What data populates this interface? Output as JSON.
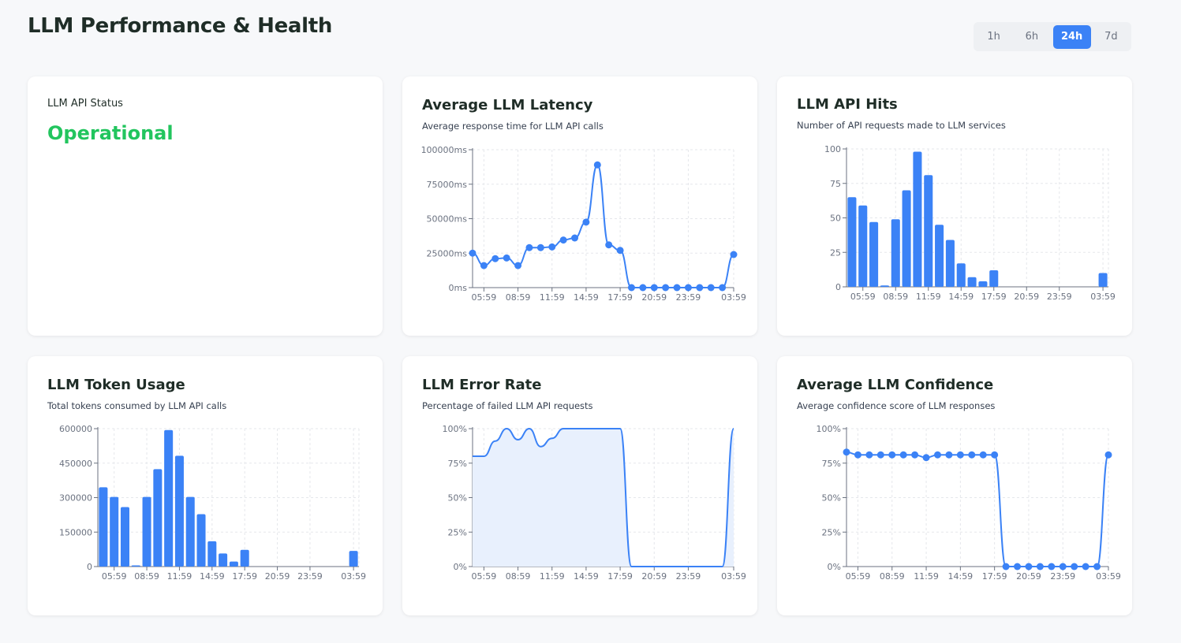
{
  "header": {
    "title": "LLM Performance & Health",
    "ranges": [
      "1h",
      "6h",
      "24h",
      "7d"
    ],
    "active_range": "24h"
  },
  "colors": {
    "accent": "#3b82f6",
    "success": "#22c55e",
    "fill": "#e8f0fd"
  },
  "status_card": {
    "label": "LLM API Status",
    "value": "Operational"
  },
  "cards": {
    "latency": {
      "title": "Average LLM Latency",
      "subtitle": "Average response time for LLM API calls"
    },
    "hits": {
      "title": "LLM API Hits",
      "subtitle": "Number of API requests made to LLM services"
    },
    "tokens": {
      "title": "LLM Token Usage",
      "subtitle": "Total tokens consumed by LLM API calls"
    },
    "error": {
      "title": "LLM Error Rate",
      "subtitle": "Percentage of failed LLM API requests"
    },
    "confidence": {
      "title": "Average LLM Confidence",
      "subtitle": "Average confidence score of LLM responses"
    }
  },
  "chart_data": [
    {
      "id": "latency",
      "type": "line",
      "marker": true,
      "x_ticks": [
        "05:59",
        "08:59",
        "11:59",
        "14:59",
        "17:59",
        "20:59",
        "23:59",
        "03:59"
      ],
      "x_tick_index": [
        1,
        4,
        7,
        10,
        13,
        16,
        19,
        23
      ],
      "y_ticks": [
        "0ms",
        "25000ms",
        "50000ms",
        "75000ms",
        "100000ms"
      ],
      "ylim": [
        0,
        100000
      ],
      "values": [
        25000,
        16000,
        21000,
        21500,
        16000,
        29000,
        29000,
        29500,
        34500,
        36000,
        47500,
        89000,
        31000,
        27000,
        0,
        0,
        0,
        0,
        0,
        0,
        0,
        0,
        0,
        24000
      ]
    },
    {
      "id": "hits",
      "type": "bar",
      "x_ticks": [
        "05:59",
        "08:59",
        "11:59",
        "14:59",
        "17:59",
        "20:59",
        "23:59",
        "03:59"
      ],
      "x_tick_index": [
        1,
        4,
        7,
        10,
        13,
        16,
        19,
        23
      ],
      "y_ticks": [
        "0",
        "25",
        "50",
        "75",
        "100"
      ],
      "ylim": [
        0,
        100
      ],
      "values": [
        65,
        59,
        47,
        1,
        49,
        70,
        98,
        81,
        45,
        34,
        17,
        7,
        4,
        12,
        0,
        0,
        0,
        0,
        0,
        0,
        0,
        0,
        0,
        10
      ]
    },
    {
      "id": "tokens",
      "type": "bar",
      "x_ticks": [
        "05:59",
        "08:59",
        "11:59",
        "14:59",
        "17:59",
        "20:59",
        "23:59",
        "03:59"
      ],
      "x_tick_index": [
        1,
        4,
        7,
        10,
        13,
        16,
        19,
        23
      ],
      "y_ticks": [
        "0",
        "150000",
        "300000",
        "450000",
        "600000"
      ],
      "ylim": [
        0,
        600000
      ],
      "values": [
        345000,
        303000,
        259000,
        5000,
        303000,
        424000,
        594000,
        482000,
        303000,
        228000,
        110000,
        57000,
        22000,
        73000,
        0,
        0,
        0,
        0,
        0,
        0,
        0,
        0,
        0,
        68000
      ]
    },
    {
      "id": "error",
      "type": "area",
      "x_ticks": [
        "05:59",
        "08:59",
        "11:59",
        "14:59",
        "17:59",
        "20:59",
        "23:59",
        "03:59"
      ],
      "x_tick_index": [
        1,
        4,
        7,
        10,
        13,
        16,
        19,
        23
      ],
      "y_ticks": [
        "0%",
        "25%",
        "50%",
        "75%",
        "100%"
      ],
      "ylim": [
        0,
        100
      ],
      "values": [
        80,
        80,
        91,
        100,
        92,
        100,
        87,
        93,
        100,
        100,
        100,
        100,
        100,
        100,
        0,
        0,
        0,
        0,
        0,
        0,
        0,
        0,
        0,
        100
      ]
    },
    {
      "id": "confidence",
      "type": "line",
      "marker": true,
      "x_ticks": [
        "05:59",
        "08:59",
        "11:59",
        "14:59",
        "17:59",
        "20:59",
        "23:59",
        "03:59"
      ],
      "x_tick_index": [
        1,
        4,
        7,
        10,
        13,
        16,
        19,
        23
      ],
      "y_ticks": [
        "0%",
        "25%",
        "50%",
        "75%",
        "100%"
      ],
      "ylim": [
        0,
        100
      ],
      "values": [
        83,
        81,
        81,
        81,
        81,
        81,
        81,
        79,
        81,
        81,
        81,
        81,
        81,
        81,
        0,
        0,
        0,
        0,
        0,
        0,
        0,
        0,
        0,
        81
      ]
    }
  ]
}
